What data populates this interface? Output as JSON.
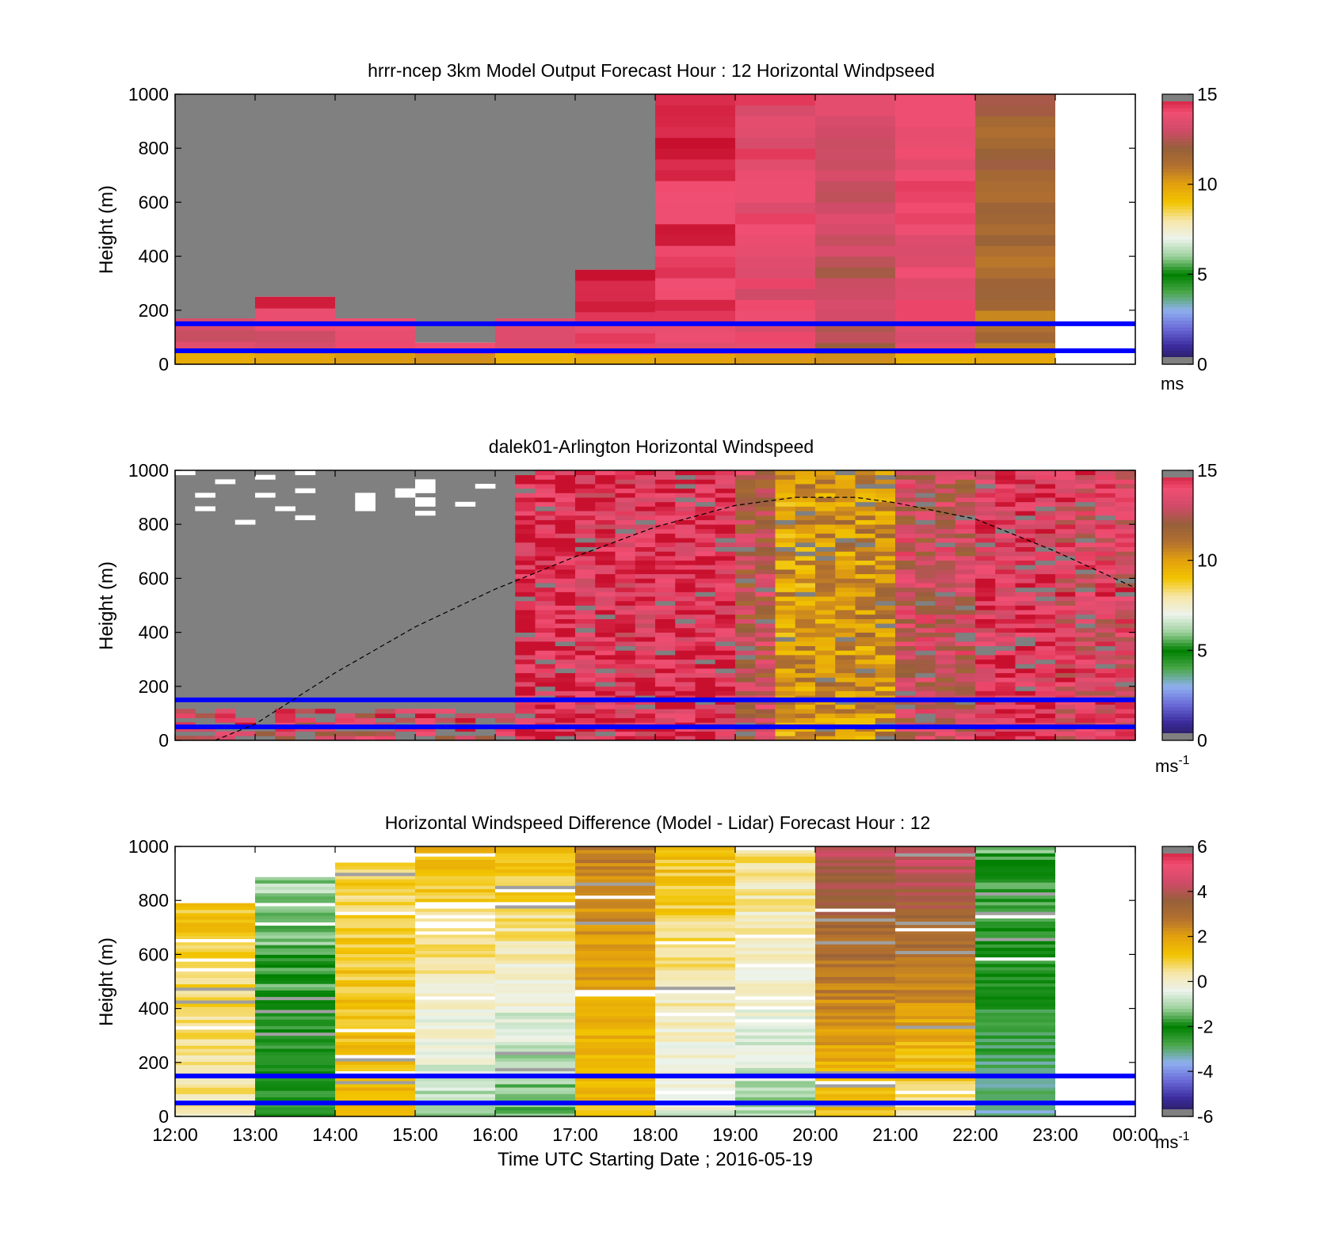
{
  "colors": {
    "missing": "#808080",
    "reference_line": "#0000ff",
    "speed_scale": [
      "#251a4a",
      "#3a2a9c",
      "#6a6ad8",
      "#8fb0f0",
      "#4aa84a",
      "#008000",
      "#9bd09b",
      "#ecf3ec",
      "#f6e6a8",
      "#f2c400",
      "#e3a10e",
      "#b3712f",
      "#96603a",
      "#d04b68",
      "#f04e72",
      "#c8102e"
    ],
    "difference_scale": [
      "#251a4a",
      "#3a2a9c",
      "#6a6ad8",
      "#8fb0f0",
      "#4aa84a",
      "#008000",
      "#9bd09b",
      "#ecf3ec",
      "#f6e6a8",
      "#f2c400",
      "#e3a10e",
      "#b3712f",
      "#96603a",
      "#d04b68",
      "#f04e72",
      "#c8102e"
    ]
  },
  "chart_data": [
    {
      "type": "heatmap",
      "title": "hrrr-ncep 3km Model Output   Forecast Hour : 12 Horizontal Windpseed",
      "ylabel": "Height (m)",
      "xlabel": "",
      "ylim": [
        0,
        1000
      ],
      "yticks": [
        "0",
        "200",
        "400",
        "600",
        "800",
        "1000"
      ],
      "colorbar": {
        "range": [
          0,
          15
        ],
        "ticks": [
          "0",
          "5",
          "10",
          "15"
        ],
        "unit": "ms"
      },
      "reference_heights_m": [
        50,
        150
      ],
      "columns": [
        {
          "start": "12:00",
          "end": "13:00",
          "top_m": 170,
          "upper_speed": 0,
          "lower_speed": 13
        },
        {
          "start": "13:00",
          "end": "14:00",
          "top_m": 250,
          "upper_speed": 14.5,
          "lower_speed": 13
        },
        {
          "start": "14:00",
          "end": "15:00",
          "top_m": 170,
          "upper_speed": 0,
          "lower_speed": 13.5
        },
        {
          "start": "15:00",
          "end": "16:00",
          "top_m": 80,
          "upper_speed": 0,
          "lower_speed": 14
        },
        {
          "start": "16:00",
          "end": "17:00",
          "top_m": 170,
          "upper_speed": 0,
          "lower_speed": 14
        },
        {
          "start": "17:00",
          "end": "18:00",
          "top_m": 350,
          "upper_speed": 14.5,
          "lower_speed": 14
        },
        {
          "start": "18:00",
          "end": "19:00",
          "top_m": 1000,
          "upper_speed": 14.8,
          "lower_speed": 14
        },
        {
          "start": "19:00",
          "end": "20:00",
          "top_m": 1000,
          "upper_speed": 13.8,
          "lower_speed": 13.5
        },
        {
          "start": "20:00",
          "end": "21:00",
          "top_m": 1000,
          "upper_speed": 13.5,
          "lower_speed": 12.5
        },
        {
          "start": "21:00",
          "end": "22:00",
          "top_m": 1000,
          "upper_speed": 14.2,
          "lower_speed": 13.5
        },
        {
          "start": "22:00",
          "end": "23:00",
          "top_m": 1000,
          "upper_speed": 11.8,
          "lower_speed": 11
        }
      ]
    },
    {
      "type": "heatmap",
      "title": "dalek01-Arlington  Horizontal Windspeed",
      "ylabel": "Height (m)",
      "xlabel": "",
      "ylim": [
        0,
        1000
      ],
      "yticks": [
        "0",
        "200",
        "400",
        "600",
        "800",
        "1000"
      ],
      "colorbar": {
        "range": [
          0,
          15
        ],
        "ticks": [
          "0",
          "5",
          "10",
          "15"
        ],
        "unit": "ms",
        "unit_exponent": "-1"
      },
      "reference_heights_m": [
        50,
        150
      ],
      "boundary_layer_curve": {
        "x": [
          "12:30",
          "13:00",
          "14:00",
          "15:00",
          "16:00",
          "17:00",
          "18:00",
          "19:00",
          "19:45",
          "20:30",
          "21:00",
          "22:00",
          "23:00",
          "00:00"
        ],
        "height_m": [
          0,
          60,
          250,
          420,
          560,
          680,
          790,
          870,
          900,
          900,
          880,
          820,
          700,
          570
        ]
      },
      "columns": [
        {
          "start": "12:00",
          "end": "16:20",
          "top_m": 1000,
          "speed": 0
        },
        {
          "start": "16:20",
          "end": "17:00",
          "top_m": 960,
          "speed": 14.5
        },
        {
          "start": "17:00",
          "end": "18:00",
          "top_m": 1000,
          "speed": 14
        },
        {
          "start": "18:00",
          "end": "19:00",
          "top_m": 1000,
          "speed": 14.2
        },
        {
          "start": "19:00",
          "end": "19:30",
          "top_m": 1000,
          "speed": 12.5
        },
        {
          "start": "19:30",
          "end": "20:00",
          "top_m": 1000,
          "speed": 10
        },
        {
          "start": "20:00",
          "end": "21:00",
          "top_m": 1000,
          "speed": 10.2
        },
        {
          "start": "21:00",
          "end": "22:00",
          "top_m": 1000,
          "speed": 12.8
        },
        {
          "start": "22:00",
          "end": "23:00",
          "top_m": 1000,
          "speed": 14
        },
        {
          "start": "23:00",
          "end": "00:00",
          "top_m": 1000,
          "speed": 13.5
        }
      ]
    },
    {
      "type": "heatmap",
      "title": "Horizontal Windspeed Difference (Model - Lidar) Forecast Hour : 12",
      "ylabel": "Height (m)",
      "xlabel": "Time UTC  Starting Date ; 2016-05-19",
      "ylim": [
        0,
        1000
      ],
      "yticks": [
        "0",
        "200",
        "400",
        "600",
        "800",
        "1000"
      ],
      "xticks": [
        "12:00",
        "13:00",
        "14:00",
        "15:00",
        "16:00",
        "17:00",
        "18:00",
        "19:00",
        "20:00",
        "21:00",
        "22:00",
        "23:00",
        "00:00"
      ],
      "colorbar": {
        "range": [
          -6,
          6
        ],
        "ticks": [
          "-6",
          "-4",
          "-2",
          "0",
          "2",
          "4",
          "6"
        ],
        "unit": "ms",
        "unit_exponent": "-1"
      },
      "reference_heights_m": [
        50,
        150
      ],
      "columns": [
        {
          "start": "12:00",
          "end": "13:00",
          "top_m": 790,
          "upper_diff": 1.2,
          "lower_diff": 0.3
        },
        {
          "start": "13:00",
          "end": "14:00",
          "top_m": 900,
          "upper_diff": -1,
          "lower_diff": -2.5
        },
        {
          "start": "14:00",
          "end": "15:00",
          "top_m": 940,
          "upper_diff": 0.8,
          "lower_diff": 1.5
        },
        {
          "start": "15:00",
          "end": "16:00",
          "top_m": 1000,
          "upper_diff": 1.5,
          "lower_diff": -1
        },
        {
          "start": "16:00",
          "end": "17:00",
          "top_m": 1000,
          "upper_diff": 1.4,
          "lower_diff": -1.5
        },
        {
          "start": "17:00",
          "end": "18:00",
          "top_m": 1000,
          "upper_diff": 2.5,
          "lower_diff": 1.3
        },
        {
          "start": "18:00",
          "end": "19:00",
          "top_m": 1000,
          "upper_diff": 1.3,
          "lower_diff": -0.5
        },
        {
          "start": "19:00",
          "end": "20:00",
          "top_m": 1000,
          "upper_diff": 0.6,
          "lower_diff": -1
        },
        {
          "start": "20:00",
          "end": "21:00",
          "top_m": 1000,
          "upper_diff": 4.2,
          "lower_diff": 1.2
        },
        {
          "start": "21:00",
          "end": "22:00",
          "top_m": 1000,
          "upper_diff": 4.5,
          "lower_diff": 0.5
        },
        {
          "start": "22:00",
          "end": "23:00",
          "top_m": 1000,
          "upper_diff": -1.5,
          "lower_diff": -3.2
        }
      ]
    }
  ]
}
